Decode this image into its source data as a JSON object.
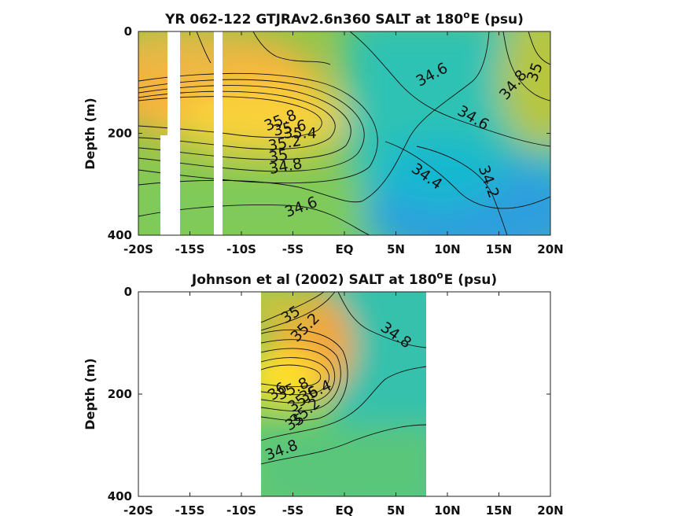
{
  "chart_data": [
    {
      "type": "heatmap",
      "title": "YR 062-122 GTJRAv2.6n360 SALT at 180",
      "title_superscript": "o",
      "title_suffix": "E (psu)",
      "ylabel": "Depth (m)",
      "xlim": [
        -20,
        20
      ],
      "ylim": [
        0,
        400
      ],
      "y_inverted": true,
      "x_ticks": [
        "-20S",
        "-15S",
        "-10S",
        "-5S",
        "EQ",
        "5N",
        "10N",
        "15N",
        "20N"
      ],
      "y_ticks": [
        "0",
        "200",
        "400"
      ],
      "colormap": "parula",
      "contour_labels": [
        {
          "text": "35.8",
          "lat": -6.2,
          "depth": 175
        },
        {
          "text": "35.6",
          "lat": -5.3,
          "depth": 190
        },
        {
          "text": "35.4",
          "lat": -4.3,
          "depth": 200
        },
        {
          "text": "35.2",
          "lat": -5.8,
          "depth": 220
        },
        {
          "text": "35",
          "lat": -6.4,
          "depth": 245
        },
        {
          "text": "34.8",
          "lat": -5.7,
          "depth": 265
        },
        {
          "text": "34.6",
          "lat": -4.2,
          "depth": 345
        },
        {
          "text": "34.4",
          "lat": 8.0,
          "depth": 285
        },
        {
          "text": "34.6",
          "lat": 8.5,
          "depth": 85
        },
        {
          "text": "34.8",
          "lat": 16.4,
          "depth": 105
        },
        {
          "text": "35",
          "lat": 18.5,
          "depth": 80
        },
        {
          "text": "34.6",
          "lat": 12.5,
          "depth": 170
        },
        {
          "text": "34.2",
          "lat": 14.0,
          "depth": 295
        }
      ]
    },
    {
      "type": "heatmap",
      "title": "Johnson et al (2002) SALT at 180",
      "title_superscript": "o",
      "title_suffix": "E (psu)",
      "ylabel": "Depth (m)",
      "xlim": [
        -20,
        20
      ],
      "ylim": [
        0,
        400
      ],
      "y_inverted": true,
      "data_lat_range": [
        -8,
        8
      ],
      "x_ticks": [
        "-20S",
        "-15S",
        "-10S",
        "-5S",
        "EQ",
        "5N",
        "10N",
        "15N",
        "20N"
      ],
      "y_ticks": [
        "0",
        "200",
        "400"
      ],
      "colormap": "parula",
      "contour_labels": [
        {
          "text": "35",
          "lat": -5.2,
          "depth": 45
        },
        {
          "text": "35.2",
          "lat": -3.8,
          "depth": 70
        },
        {
          "text": "34.8",
          "lat": 5.0,
          "depth": 85
        },
        {
          "text": "36",
          "lat": -6.5,
          "depth": 195
        },
        {
          "text": "35.8",
          "lat": -5.0,
          "depth": 190
        },
        {
          "text": "35.6",
          "lat": -4.0,
          "depth": 210
        },
        {
          "text": "35.4",
          "lat": -2.8,
          "depth": 195
        },
        {
          "text": "35.2",
          "lat": -3.8,
          "depth": 235
        },
        {
          "text": "35",
          "lat": -4.8,
          "depth": 255
        },
        {
          "text": "34.8",
          "lat": -6.1,
          "depth": 310
        }
      ]
    }
  ]
}
